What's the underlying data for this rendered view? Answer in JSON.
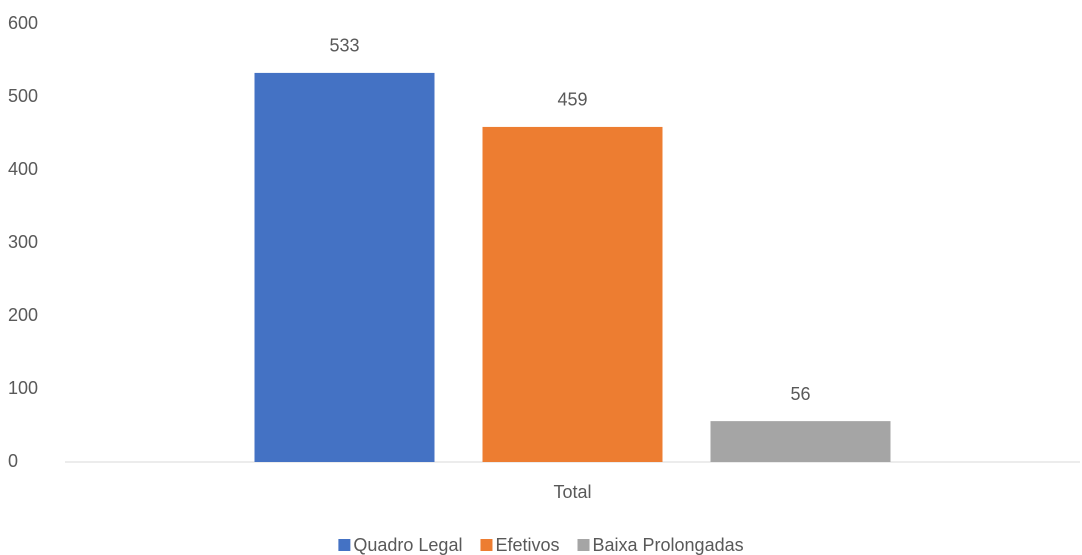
{
  "chart_data": {
    "type": "bar",
    "categories": [
      "Total"
    ],
    "series": [
      {
        "name": "Quadro Legal",
        "color": "#4472c4",
        "values": [
          533
        ]
      },
      {
        "name": "Efetivos",
        "color": "#ed7d31",
        "values": [
          459
        ]
      },
      {
        "name": "Baixa Prolongadas",
        "color": "#a5a5a5",
        "values": [
          56
        ]
      }
    ],
    "ylim": [
      0,
      600
    ],
    "yticks": [
      0,
      100,
      200,
      300,
      400,
      500,
      600
    ],
    "grid": false,
    "data_labels": true,
    "legend": "bottom"
  }
}
